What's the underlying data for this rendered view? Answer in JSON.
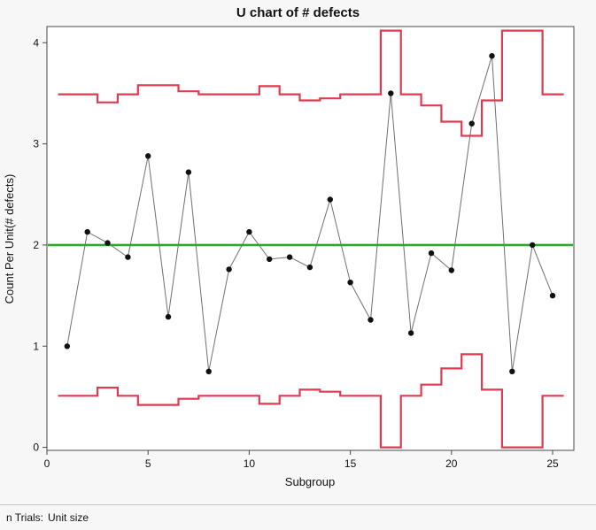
{
  "title": "U chart of # defects",
  "footer": {
    "label": "n Trials:",
    "value": "Unit size"
  },
  "colors": {
    "limit": "#e03a50",
    "center": "#2aa82a",
    "point": "#111111",
    "series_line": "#707070",
    "frame": "#4a4a4a",
    "background": "#f7f7f7",
    "plot_bg": "#ffffff"
  },
  "chart_data": {
    "type": "line",
    "subtype": "u-control-chart",
    "title": "U chart of # defects",
    "xlabel": "Subgroup",
    "ylabel": "Count Per Unit(# defects)",
    "xlim": [
      0,
      26.05
    ],
    "ylim": [
      -0.03,
      4.16
    ],
    "x_ticks": [
      0,
      5,
      10,
      15,
      20,
      25
    ],
    "y_ticks": [
      0,
      1,
      2,
      3,
      4
    ],
    "grid": false,
    "legend_position": "none",
    "center_line": 2.0,
    "x": [
      1,
      2,
      3,
      4,
      5,
      6,
      7,
      8,
      9,
      10,
      11,
      12,
      13,
      14,
      15,
      16,
      17,
      18,
      19,
      20,
      21,
      22,
      23,
      24,
      25
    ],
    "values": [
      1.0,
      2.13,
      2.02,
      1.88,
      2.88,
      1.29,
      2.72,
      0.75,
      1.76,
      2.13,
      1.86,
      1.88,
      1.78,
      2.45,
      1.63,
      1.26,
      3.5,
      1.13,
      1.92,
      1.75,
      3.2,
      3.87,
      0.75,
      2.0,
      1.5
    ],
    "ucl": [
      3.49,
      3.49,
      3.41,
      3.49,
      3.58,
      3.58,
      3.52,
      3.49,
      3.49,
      3.49,
      3.57,
      3.49,
      3.43,
      3.45,
      3.49,
      3.49,
      4.12,
      3.49,
      3.38,
      3.22,
      3.08,
      3.43,
      4.12,
      4.12,
      3.49
    ],
    "lcl": [
      0.51,
      0.51,
      0.59,
      0.51,
      0.42,
      0.42,
      0.48,
      0.51,
      0.51,
      0.51,
      0.43,
      0.51,
      0.57,
      0.55,
      0.51,
      0.51,
      0.0,
      0.51,
      0.62,
      0.78,
      0.92,
      0.57,
      0.0,
      0.0,
      0.51
    ]
  }
}
